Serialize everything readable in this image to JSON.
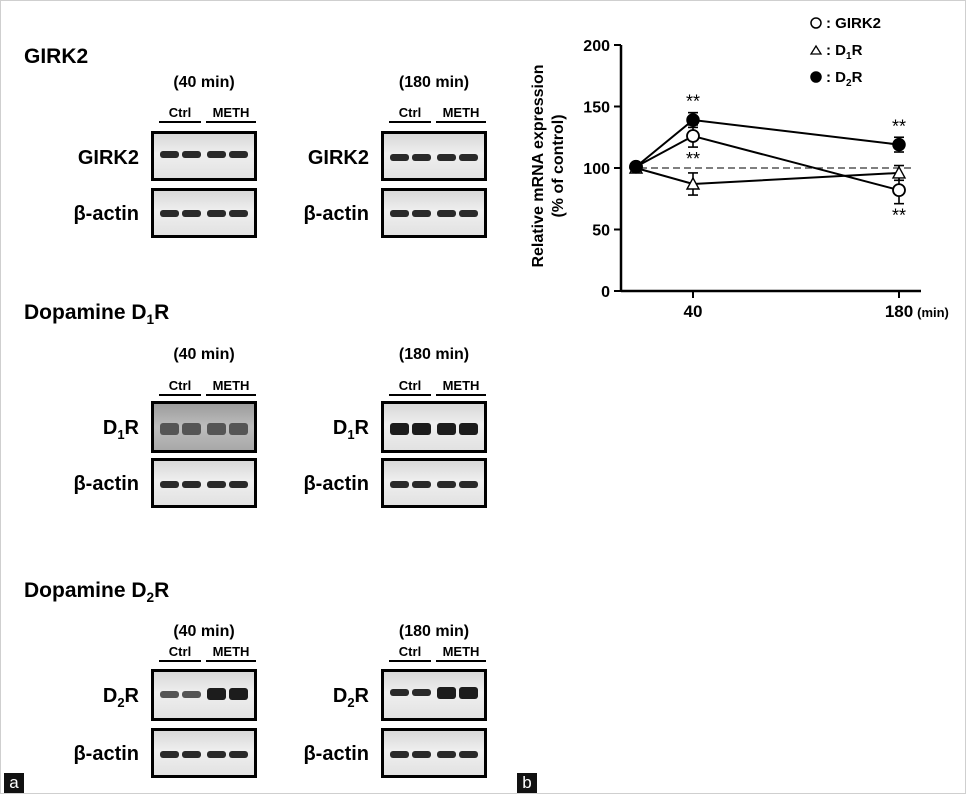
{
  "panel_a": {
    "label": "a",
    "group_ctrl": "Ctrl",
    "group_meth": "METH",
    "sections": [
      {
        "title_main": "GIRK2",
        "title_sub": "",
        "title_post": "",
        "target_main": "GIRK2",
        "target_sub": "",
        "target_post": "",
        "time_labels": [
          "(40 min)",
          "(180 min)"
        ],
        "loading_control": "β-actin"
      },
      {
        "title_main": "Dopamine D",
        "title_sub": "1",
        "title_post": "R",
        "target_main": "D",
        "target_sub": "1",
        "target_post": "R",
        "time_labels": [
          "(40 min)",
          "(180 min)"
        ],
        "loading_control": "β-actin"
      },
      {
        "title_main": "Dopamine D",
        "title_sub": "2",
        "title_post": "R",
        "target_main": "D",
        "target_sub": "2",
        "target_post": "R",
        "time_labels": [
          "(40 min)",
          "(180 min)"
        ],
        "loading_control": "β-actin"
      }
    ]
  },
  "panel_b": {
    "label": "b"
  },
  "chart_data": {
    "type": "line",
    "ylabel_line1": "Relative mRNA expression",
    "ylabel_line2": "(% of control)",
    "xunit": "(min)",
    "x_ticks": [
      "40",
      "180"
    ],
    "y_ticks": [
      0,
      50,
      100,
      150,
      200
    ],
    "ylim": [
      0,
      200
    ],
    "reference_line": 100,
    "legend_position": "top-right",
    "series": [
      {
        "name": "GIRK2",
        "legend_main": ": GIRK2",
        "legend_sub": "",
        "legend_post": "",
        "marker": "open-circle",
        "x": [
          0,
          40,
          180
        ],
        "y": [
          101,
          126,
          82
        ],
        "err": [
          3,
          9,
          11
        ],
        "annotations": [
          {
            "x": 40,
            "text": "**",
            "pos": "below"
          },
          {
            "x": 180,
            "text": "**",
            "pos": "below"
          }
        ]
      },
      {
        "name": "D1R",
        "legend_main": ": D",
        "legend_sub": "1",
        "legend_post": "R",
        "marker": "open-triangle",
        "x": [
          0,
          40,
          180
        ],
        "y": [
          100,
          87,
          96
        ],
        "err": [
          3,
          9,
          6
        ],
        "annotations": []
      },
      {
        "name": "D2R",
        "legend_main": ": D",
        "legend_sub": "2",
        "legend_post": "R",
        "marker": "filled-circle",
        "x": [
          0,
          40,
          180
        ],
        "y": [
          101,
          139,
          119
        ],
        "err": [
          3,
          6,
          6
        ],
        "annotations": [
          {
            "x": 40,
            "text": "**",
            "pos": "above"
          },
          {
            "x": 180,
            "text": "**",
            "pos": "above"
          }
        ]
      }
    ]
  }
}
